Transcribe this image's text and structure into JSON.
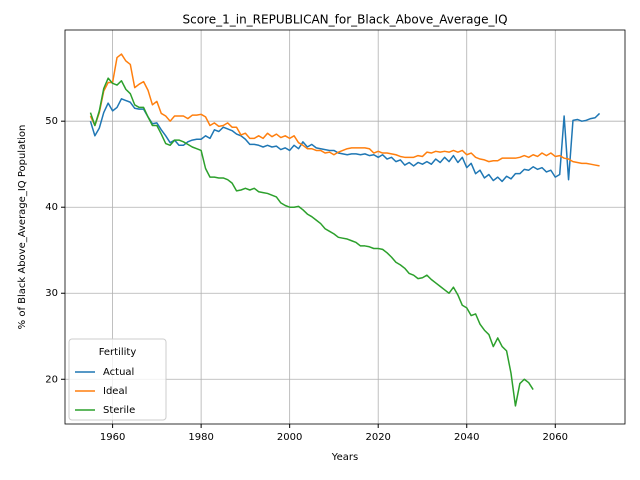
{
  "chart_data": {
    "type": "line",
    "title": "Score_1_in_REPUBLICAN_for_Black_Above_Average_IQ",
    "xlabel": "Years",
    "ylabel": "% of Black Above_Average_IQ Population",
    "legend_title": "Fertility",
    "legend": "lower left",
    "grid": true,
    "xlim": [
      1949.25,
      2075.75
    ],
    "ylim": [
      14.8,
      60.6
    ],
    "xticks": [
      1960,
      1980,
      2000,
      2020,
      2040,
      2060
    ],
    "yticks": [
      20,
      30,
      40,
      50
    ],
    "x": [
      1955,
      1956,
      1957,
      1958,
      1959,
      1960,
      1961,
      1962,
      1963,
      1964,
      1965,
      1966,
      1967,
      1968,
      1969,
      1970,
      1971,
      1972,
      1973,
      1974,
      1975,
      1976,
      1977,
      1978,
      1979,
      1980,
      1981,
      1982,
      1983,
      1984,
      1985,
      1986,
      1987,
      1988,
      1989,
      1990,
      1991,
      1992,
      1993,
      1994,
      1995,
      1996,
      1997,
      1998,
      1999,
      2000,
      2001,
      2002,
      2003,
      2004,
      2005,
      2006,
      2007,
      2008,
      2009,
      2010,
      2011,
      2012,
      2013,
      2014,
      2015,
      2016,
      2017,
      2018,
      2019,
      2020,
      2021,
      2022,
      2023,
      2024,
      2025,
      2026,
      2027,
      2028,
      2029,
      2030,
      2031,
      2032,
      2033,
      2034,
      2035,
      2036,
      2037,
      2038,
      2039,
      2040,
      2041,
      2042,
      2043,
      2044,
      2045,
      2046,
      2047,
      2048,
      2049,
      2050,
      2051,
      2052,
      2053,
      2054,
      2055,
      2056,
      2057,
      2058,
      2059,
      2060,
      2061,
      2062,
      2063,
      2064,
      2065,
      2066,
      2067,
      2068,
      2069,
      2070
    ],
    "series": [
      {
        "name": "Actual",
        "color": "#1f77b4",
        "values": [
          50,
          48.3,
          49.2,
          51,
          52.1,
          51.2,
          51.6,
          52.6,
          52.4,
          52.2,
          51.5,
          51.4,
          51.4,
          50.5,
          49.7,
          49.8,
          49,
          48.3,
          47.5,
          47.8,
          47.2,
          47.2,
          47.6,
          47.8,
          47.9,
          47.9,
          48.3,
          48,
          49,
          48.8,
          49.3,
          49.1,
          48.9,
          48.5,
          48.3,
          47.9,
          47.3,
          47.3,
          47.2,
          47,
          47.2,
          47,
          47.1,
          46.7,
          46.9,
          46.6,
          47.2,
          46.8,
          47.6,
          47,
          47.3,
          46.9,
          46.8,
          46.7,
          46.6,
          46.6,
          46.3,
          46.2,
          46.1,
          46.2,
          46.2,
          46.1,
          46.2,
          46,
          46.1,
          45.8,
          46.1,
          45.6,
          45.8,
          45.3,
          45.5,
          44.9,
          45.2,
          44.8,
          45.2,
          45,
          45.3,
          45,
          45.6,
          45.2,
          45.8,
          45.3,
          46,
          45.2,
          45.8,
          44.6,
          45.1,
          43.9,
          44.3,
          43.4,
          43.8,
          43.1,
          43.5,
          43,
          43.6,
          43.3,
          43.9,
          43.9,
          44.4,
          44.3,
          44.7,
          44.4,
          44.6,
          44.1,
          44.3,
          43.5,
          43.8,
          50.6,
          43.2,
          50.1,
          50.2,
          50,
          50.1,
          50.3,
          50.4,
          50.9
        ]
      },
      {
        "name": "Ideal",
        "color": "#ff7f0e",
        "values": [
          50.6,
          49.5,
          51,
          53.5,
          54.5,
          54.5,
          57.4,
          57.8,
          57,
          56.6,
          53.9,
          54.3,
          54.6,
          53.6,
          51.9,
          52.3,
          50.9,
          50.6,
          50,
          50.6,
          50.6,
          50.6,
          50.3,
          50.7,
          50.7,
          50.8,
          50.5,
          49.5,
          49.8,
          49.4,
          49.5,
          49.8,
          49.3,
          49.3,
          48.4,
          48.6,
          48,
          48,
          48.3,
          48,
          48.6,
          48.2,
          48.5,
          48.1,
          48.3,
          48,
          48.3,
          47.5,
          47.2,
          46.8,
          46.8,
          46.6,
          46.6,
          46.3,
          46.4,
          46.1,
          46.4,
          46.6,
          46.8,
          46.9,
          46.9,
          46.9,
          46.9,
          46.8,
          46.3,
          46.5,
          46.3,
          46.3,
          46.2,
          46.1,
          45.9,
          45.8,
          45.8,
          45.8,
          46,
          45.9,
          46.4,
          46.3,
          46.5,
          46.4,
          46.5,
          46.4,
          46.6,
          46.4,
          46.6,
          46.1,
          46.3,
          45.8,
          45.6,
          45.5,
          45.3,
          45.4,
          45.4,
          45.7,
          45.7,
          45.7,
          45.7,
          45.8,
          46,
          45.8,
          46.1,
          45.9,
          46.3,
          46,
          46.3,
          45.9,
          46,
          45.7,
          45.6,
          45.3,
          45.2,
          45.1,
          45.1,
          45,
          44.9,
          44.8
        ]
      },
      {
        "name": "Sterile",
        "color": "#2ca02c",
        "values": [
          51,
          49.5,
          51.2,
          53.8,
          55,
          54.4,
          54.2,
          54.7,
          53.7,
          53.2,
          51.9,
          51.6,
          51.6,
          50.5,
          49.5,
          49.5,
          48.5,
          47.4,
          47.2,
          47.8,
          47.8,
          47.6,
          47.3,
          47,
          46.8,
          46.6,
          44.5,
          43.5,
          43.5,
          43.4,
          43.4,
          43.2,
          42.8,
          41.9,
          42,
          42.2,
          42,
          42.2,
          41.8,
          41.7,
          41.6,
          41.4,
          41.2,
          40.5,
          40.2,
          40,
          40,
          40.1,
          39.7,
          39.2,
          38.9,
          38.5,
          38.1,
          37.5,
          37.2,
          36.9,
          36.5,
          36.4,
          36.3,
          36.1,
          35.9,
          35.5,
          35.5,
          35.4,
          35.2,
          35.2,
          35.1,
          34.7,
          34.2,
          33.6,
          33.3,
          32.9,
          32.3,
          32.1,
          31.7,
          31.8,
          32.1,
          31.6,
          31.2,
          30.8,
          30.4,
          30,
          30.7,
          29.8,
          28.6,
          28.3,
          27.4,
          27.6,
          26.4,
          25.7,
          25.2,
          23.8,
          24.8,
          23.8,
          23.3,
          20.7,
          16.9,
          19.5,
          20,
          19.6,
          18.8,
          null,
          null,
          null,
          null,
          null,
          null,
          null,
          null,
          null,
          null,
          null,
          null,
          null,
          null,
          null
        ]
      }
    ]
  }
}
